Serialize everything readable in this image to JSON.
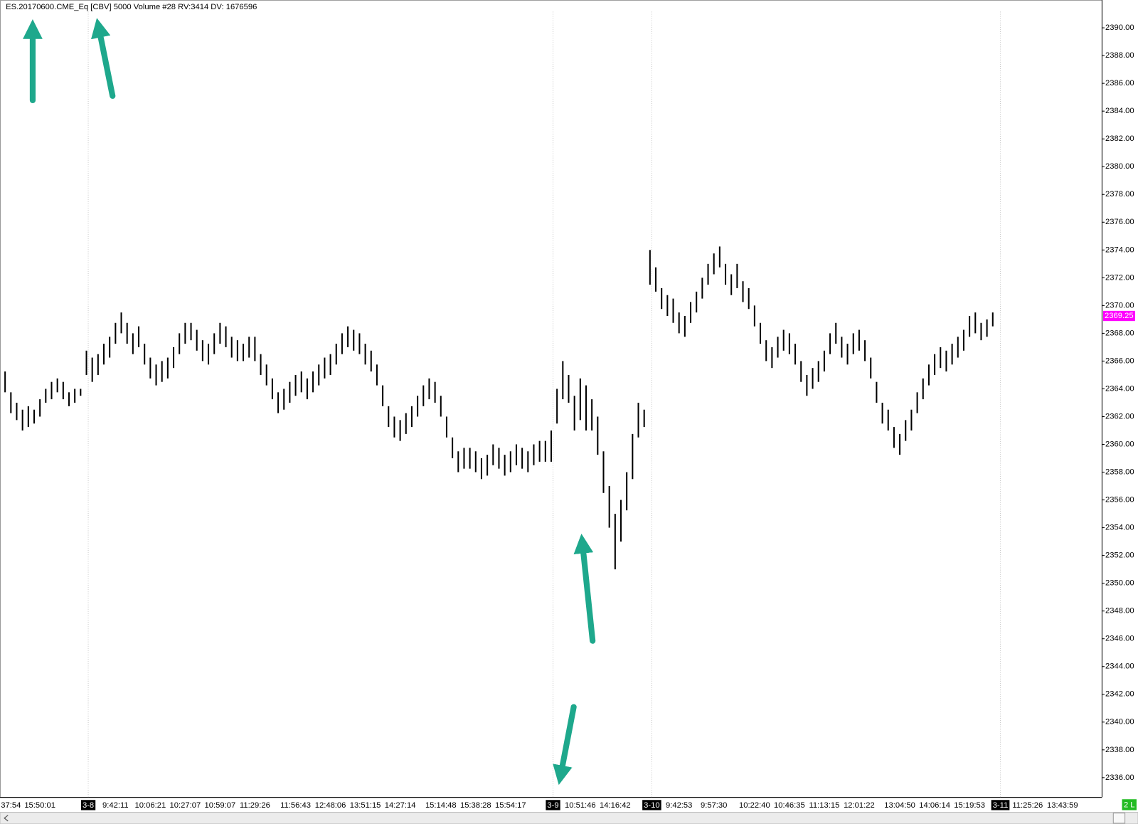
{
  "chart_data": {
    "type": "ohlc",
    "title": "ES.20170600.CME_Eq [CBV]  5000 Volume  #28 RV:3414 DV: 1676596",
    "categories": [
      null,
      "37:54",
      null,
      null,
      null,
      null,
      "15:50:01",
      null,
      null,
      null,
      null,
      null,
      null,
      null,
      "3-8",
      null,
      null,
      null,
      null,
      "9:42:11",
      null,
      null,
      null,
      null,
      null,
      "10:06:21",
      null,
      null,
      null,
      null,
      null,
      "10:27:07",
      null,
      null,
      null,
      null,
      null,
      "10:59:07",
      null,
      null,
      null,
      null,
      null,
      "11:29:26",
      null,
      null,
      null,
      null,
      null,
      null,
      "11:56:43",
      null,
      null,
      null,
      null,
      null,
      "12:48:06",
      null,
      null,
      null,
      null,
      null,
      "13:51:15",
      null,
      null,
      null,
      null,
      null,
      "14:27:14",
      null,
      null,
      null,
      null,
      null,
      null,
      "15:14:48",
      null,
      null,
      null,
      null,
      null,
      "15:38:28",
      null,
      null,
      null,
      null,
      null,
      "15:54:17",
      null,
      null,
      null,
      null,
      null,
      null,
      "3-9",
      null,
      null,
      null,
      null,
      "10:51:46",
      null,
      null,
      null,
      null,
      null,
      "14:16:42",
      null,
      null,
      null,
      null,
      null,
      "3-10",
      null,
      null,
      null,
      null,
      "9:42:53",
      null,
      null,
      null,
      null,
      null,
      "9:57:30",
      null,
      null,
      null,
      null,
      null,
      null,
      "10:22:40",
      null,
      null,
      null,
      null,
      null,
      "10:46:35",
      null,
      null,
      null,
      null,
      null,
      "11:13:15",
      null,
      null,
      null,
      null,
      null,
      "12:01:22",
      null,
      null,
      null,
      null,
      null,
      null,
      "13:04:50",
      null,
      null,
      null,
      null,
      null,
      "14:06:14",
      null,
      null,
      null,
      null,
      null,
      "15:19:53",
      null,
      null,
      null,
      null,
      "3-11",
      null,
      null,
      null,
      null,
      "11:25:26",
      null,
      null,
      null,
      null,
      null,
      "13:43:59",
      null,
      null,
      null,
      null,
      null,
      null
    ],
    "high": [
      2365.25,
      2363.75,
      2363,
      2362.5,
      2362.75,
      2362.5,
      2363.25,
      2364,
      2364.5,
      2364.75,
      2364.5,
      2363.75,
      2364,
      2364,
      2366.75,
      2366.25,
      2366.5,
      2367.25,
      2367.75,
      2368.75,
      2369.5,
      2368.75,
      2368,
      2368.5,
      2367.25,
      2366.25,
      2365.75,
      2366,
      2366.25,
      2367,
      2368,
      2368.75,
      2368.75,
      2368.25,
      2367.5,
      2367.25,
      2368,
      2368.75,
      2368.5,
      2367.75,
      2367.5,
      2367.25,
      2367.75,
      2367.75,
      2366.5,
      2365.75,
      2364.75,
      2363.75,
      2364,
      2364.5,
      2365,
      2365.25,
      2364.75,
      2365.25,
      2365.75,
      2366.25,
      2366.5,
      2367.25,
      2368,
      2368.5,
      2368.25,
      2368,
      2367.25,
      2366.75,
      2365.75,
      2364.25,
      2362.75,
      2362,
      2361.75,
      2362.25,
      2362.75,
      2363.5,
      2364.25,
      2364.75,
      2364.5,
      2363.5,
      2362,
      2360.5,
      2359.5,
      2359.75,
      2359.75,
      2359.5,
      2359,
      2359.25,
      2360,
      2359.75,
      2359.25,
      2359.5,
      2360,
      2359.75,
      2359.5,
      2360,
      2360.25,
      2360.25,
      2361,
      2364,
      2366,
      2365,
      2363.5,
      2364.75,
      2364.25,
      2363.25,
      2362,
      2359.5,
      2357,
      2355,
      2356,
      2358,
      2360.75,
      2363,
      2362.5,
      2374,
      2372.75,
      2371.25,
      2370.75,
      2370.5,
      2369.5,
      2369.25,
      2370.25,
      2371,
      2372,
      2373,
      2373.75,
      2374.25,
      2373,
      2372.25,
      2373,
      2371.75,
      2371.25,
      2370,
      2368.75,
      2367.5,
      2367,
      2367.75,
      2368.25,
      2368,
      2367.25,
      2366,
      2365,
      2365.5,
      2366,
      2366.75,
      2368,
      2368.75,
      2367.75,
      2367.25,
      2368,
      2368.25,
      2367.5,
      2366.25,
      2364.5,
      2363,
      2362.5,
      2361.25,
      2360.75,
      2361.75,
      2362.5,
      2363.75,
      2364.75,
      2365.75,
      2366.5,
      2367,
      2366.75,
      2367.25,
      2367.75,
      2368.25,
      2369.25,
      2369.5,
      2368.75,
      2369,
      2369.5,
      null,
      null,
      null,
      null,
      null,
      null,
      null,
      null,
      null,
      null,
      null,
      null,
      null,
      null,
      null,
      null,
      null,
      null
    ],
    "low": [
      2363.75,
      2362.25,
      2361.75,
      2361,
      2361.25,
      2361.5,
      2362,
      2363,
      2363.25,
      2363.75,
      2363.25,
      2362.75,
      2363,
      2363.5,
      2365,
      2364.5,
      2365,
      2365.75,
      2366.25,
      2367.25,
      2368,
      2367.25,
      2366.5,
      2367,
      2365.75,
      2364.75,
      2364.25,
      2364.5,
      2364.75,
      2365.5,
      2366.5,
      2367.25,
      2367.5,
      2366.75,
      2366,
      2365.75,
      2366.5,
      2367.25,
      2367,
      2366.25,
      2366,
      2366,
      2366.25,
      2366,
      2365,
      2364.25,
      2363.25,
      2362.25,
      2362.5,
      2363,
      2363.5,
      2363.75,
      2363.25,
      2363.75,
      2364.25,
      2364.75,
      2365,
      2365.75,
      2366.5,
      2367,
      2366.75,
      2366.5,
      2365.75,
      2365.25,
      2364.25,
      2362.75,
      2361.25,
      2360.5,
      2360.25,
      2360.75,
      2361.25,
      2362,
      2362.75,
      2363.25,
      2363,
      2362,
      2360.5,
      2359,
      2358,
      2358.25,
      2358.25,
      2358,
      2357.5,
      2357.75,
      2358.5,
      2358.25,
      2357.75,
      2358,
      2358.5,
      2358.25,
      2358,
      2358.5,
      2358.75,
      2358.75,
      2358.75,
      2361.5,
      2363.25,
      2363,
      2361,
      2361.75,
      2361,
      2361,
      2359.25,
      2356.5,
      2354,
      2351,
      2353,
      2355.25,
      2357.5,
      2360.5,
      2361.25,
      2371.5,
      2371,
      2369.75,
      2369.25,
      2368.75,
      2368,
      2367.75,
      2368.75,
      2369.5,
      2370.5,
      2371.5,
      2372.25,
      2372.75,
      2371.5,
      2370.75,
      2371.25,
      2370.25,
      2369.75,
      2368.5,
      2367.25,
      2366,
      2365.5,
      2366.25,
      2366.75,
      2366.5,
      2365.75,
      2364.5,
      2363.5,
      2364,
      2364.5,
      2365.25,
      2366.5,
      2367.25,
      2366.25,
      2365.75,
      2366.5,
      2366.75,
      2366,
      2364.75,
      2363,
      2361.5,
      2361,
      2359.75,
      2359.25,
      2360.25,
      2361,
      2362.25,
      2363.25,
      2364.25,
      2365,
      2365.5,
      2365.25,
      2365.75,
      2366.25,
      2366.75,
      2367.75,
      2368,
      2367.5,
      2367.75,
      2368.5,
      null,
      null,
      null,
      null,
      null,
      null,
      null,
      null,
      null,
      null,
      null,
      null,
      null,
      null,
      null,
      null,
      null,
      null
    ],
    "color": "#000000",
    "ylim": [
      2334.6,
      2392
    ],
    "yticks": [
      {
        "value": 2336,
        "label": "2336.00"
      },
      {
        "value": 2338,
        "label": "2338.00"
      },
      {
        "value": 2340,
        "label": "2340.00"
      },
      {
        "value": 2342,
        "label": "2342.00"
      },
      {
        "value": 2344,
        "label": "2344.00"
      },
      {
        "value": 2346,
        "label": "2346.00"
      },
      {
        "value": 2348,
        "label": "2348.00"
      },
      {
        "value": 2350,
        "label": "2350.00"
      },
      {
        "value": 2352,
        "label": "2352.00"
      },
      {
        "value": 2354,
        "label": "2354.00"
      },
      {
        "value": 2356,
        "label": "2356.00"
      },
      {
        "value": 2358,
        "label": "2358.00"
      },
      {
        "value": 2360,
        "label": "2360.00"
      },
      {
        "value": 2362,
        "label": "2362.00"
      },
      {
        "value": 2364,
        "label": "2364.00"
      },
      {
        "value": 2366,
        "label": "2366.00"
      },
      {
        "value": 2368,
        "label": "2368.00"
      },
      {
        "value": 2370,
        "label": "2370.00"
      },
      {
        "value": 2372,
        "label": "2372.00"
      },
      {
        "value": 2374,
        "label": "2374.00"
      },
      {
        "value": 2376,
        "label": "2376.00"
      },
      {
        "value": 2378,
        "label": "2378.00"
      },
      {
        "value": 2380,
        "label": "2380.00"
      },
      {
        "value": 2382,
        "label": "2382.00"
      },
      {
        "value": 2384,
        "label": "2384.00"
      },
      {
        "value": 2386,
        "label": "2386.00"
      },
      {
        "value": 2388,
        "label": "2388.00"
      },
      {
        "value": 2390,
        "label": "2390.00"
      }
    ],
    "grid": false,
    "last_price": 2369.25,
    "last_price_color": "#ff00ff",
    "status": "2 L",
    "status_color": "#22bb22"
  }
}
